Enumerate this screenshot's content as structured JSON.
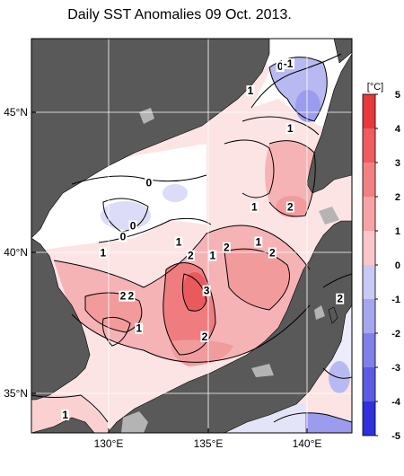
{
  "title": "Daily SST Anomalies 09 Oct. 2013.",
  "axes": {
    "lat_labels": [
      "45°N",
      "40°N",
      "35°N"
    ],
    "lon_labels": [
      "130°E",
      "135°E",
      "140°E"
    ]
  },
  "colorbar": {
    "unit": "[°C]",
    "ticks": [
      "5",
      "4",
      "3",
      "2",
      "1",
      "0",
      "-1",
      "-2",
      "-3",
      "-4",
      "-5"
    ],
    "colors": [
      "#e8383d",
      "#ee5c60",
      "#f38184",
      "#f7a3a5",
      "#fbc6c7",
      "#ffffff",
      "#c9c9f5",
      "#a6a6ef",
      "#8080e9",
      "#5c5ce3",
      "#3030dc"
    ]
  },
  "contour_labels": [
    {
      "text": "0",
      "lon": 138.6,
      "lat": 46.5
    },
    {
      "text": "-1",
      "lon": 139.0,
      "lat": 46.6
    },
    {
      "text": "1",
      "lon": 137.1,
      "lat": 45.6
    },
    {
      "text": "1",
      "lon": 139.1,
      "lat": 44.2
    },
    {
      "text": "0",
      "lon": 132.0,
      "lat": 42.2
    },
    {
      "text": "0",
      "lon": 131.2,
      "lat": 40.6
    },
    {
      "text": "0",
      "lon": 130.7,
      "lat": 40.2
    },
    {
      "text": "1",
      "lon": 137.3,
      "lat": 41.3
    },
    {
      "text": "2",
      "lon": 139.1,
      "lat": 41.3
    },
    {
      "text": "1",
      "lon": 133.5,
      "lat": 40.0
    },
    {
      "text": "2",
      "lon": 135.9,
      "lat": 39.8
    },
    {
      "text": "1",
      "lon": 137.5,
      "lat": 40.0
    },
    {
      "text": "2",
      "lon": 134.1,
      "lat": 39.5
    },
    {
      "text": "1",
      "lon": 135.2,
      "lat": 39.5
    },
    {
      "text": "2",
      "lon": 138.2,
      "lat": 39.6
    },
    {
      "text": "1",
      "lon": 129.7,
      "lat": 39.6
    },
    {
      "text": "3",
      "lon": 134.9,
      "lat": 38.2
    },
    {
      "text": "2",
      "lon": 130.7,
      "lat": 38.0
    },
    {
      "text": "2",
      "lon": 131.1,
      "lat": 38.0
    },
    {
      "text": "2",
      "lon": 141.6,
      "lat": 37.9
    },
    {
      "text": "1",
      "lon": 131.5,
      "lat": 36.8
    },
    {
      "text": "2",
      "lon": 134.8,
      "lat": 36.5
    },
    {
      "text": "1",
      "lon": 127.8,
      "lat": 33.6
    }
  ]
}
